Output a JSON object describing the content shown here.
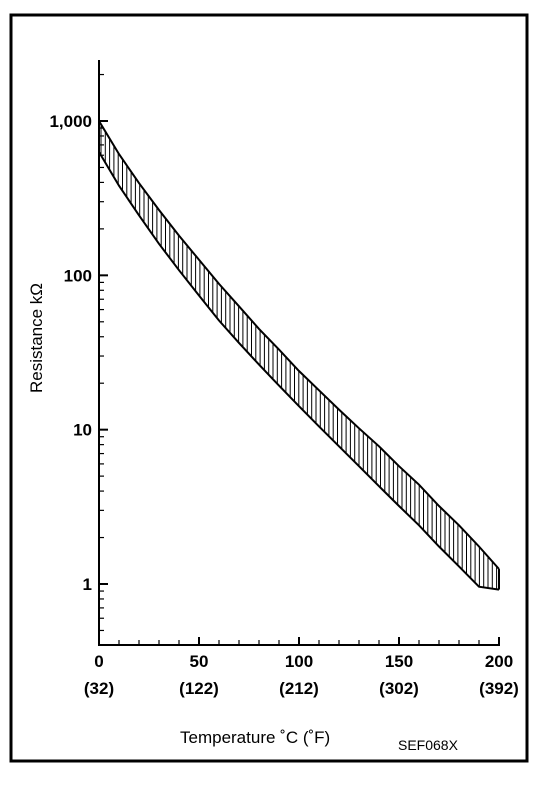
{
  "chart_data": {
    "type": "area",
    "title": "",
    "xlabel": "Temperature ˚C  (˚F)",
    "ylabel": "Resistance kΩ",
    "figure_code": "SEF068X",
    "x_scale": "linear",
    "y_scale": "log",
    "xlim": [
      0,
      200
    ],
    "ylim": [
      0.4,
      2500
    ],
    "x_ticks": [
      0,
      50,
      100,
      150,
      200
    ],
    "x_tick_labels": [
      "0",
      "50",
      "100",
      "150",
      "200"
    ],
    "x_tick_labels_secondary": [
      "(32)",
      "(122)",
      "(212)",
      "(302)",
      "(392)"
    ],
    "y_ticks": [
      1,
      10,
      100,
      1000
    ],
    "y_tick_labels": [
      "1",
      "10",
      "100",
      "1,000"
    ],
    "grid": false,
    "legend": "none",
    "band_fill": "vertical hatching",
    "colors": {
      "line": "#000000",
      "background": "#ffffff"
    },
    "series": [
      {
        "role": "upper",
        "x": [
          0,
          10,
          20,
          30,
          40,
          50,
          60,
          70,
          80,
          90,
          100,
          110,
          120,
          130,
          140,
          150,
          160,
          170,
          180,
          190,
          200
        ],
        "values": [
          1000,
          610,
          396,
          265,
          181,
          126,
          88,
          63,
          45,
          33,
          24,
          18,
          13.5,
          10.2,
          7.8,
          5.8,
          4.4,
          3.2,
          2.4,
          1.75,
          1.25
        ]
      },
      {
        "role": "lower",
        "x": [
          0,
          10,
          20,
          30,
          40,
          50,
          60,
          70,
          80,
          90,
          100,
          110,
          120,
          130,
          140,
          150,
          160,
          170,
          180,
          190,
          200
        ],
        "values": [
          630,
          381,
          245,
          160,
          108,
          74,
          51,
          36.5,
          26.4,
          19.3,
          14.2,
          10.5,
          7.8,
          5.8,
          4.3,
          3.2,
          2.4,
          1.75,
          1.3,
          0.96,
          0.92
        ]
      }
    ]
  }
}
